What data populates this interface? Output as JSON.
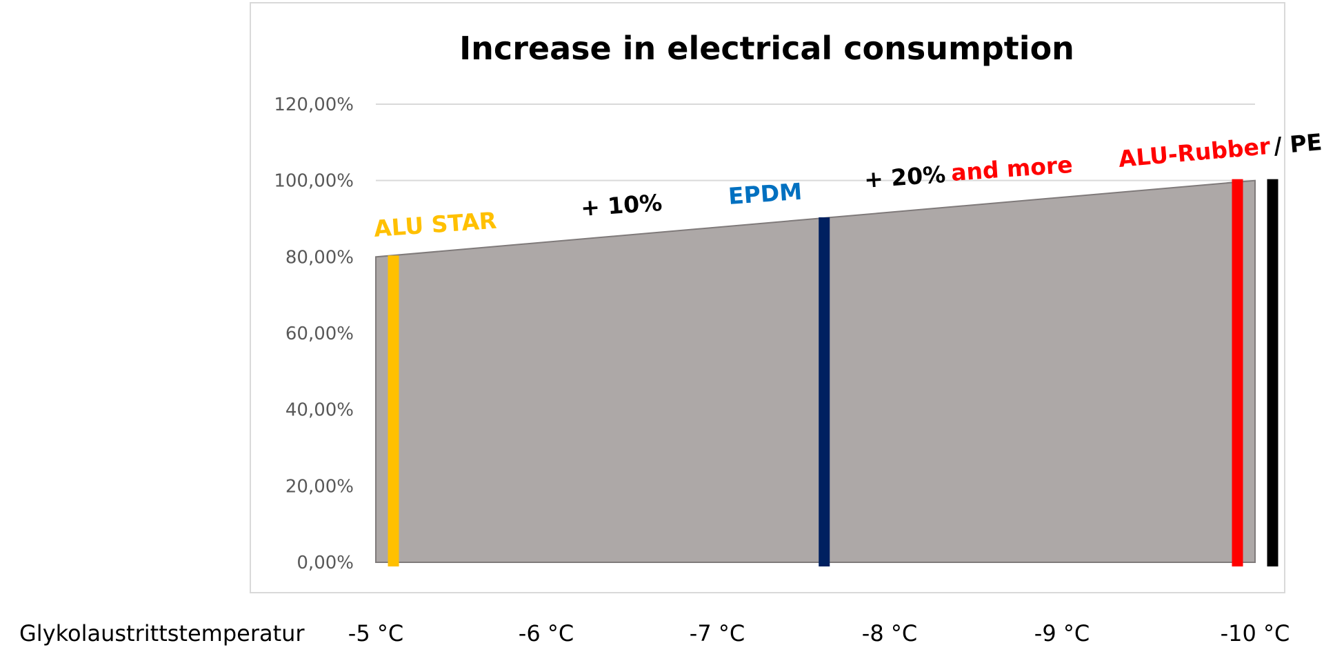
{
  "chart_data": {
    "type": "area",
    "title": "Increase in electrical consumption",
    "xlabel": "Glykolaustrittstemperatur",
    "x_ticks": [
      "-5 °C",
      "-6 °C",
      "-7 °C",
      "-8 °C",
      "-9 °C",
      "-10 °C"
    ],
    "y_ticks": [
      "0,00%",
      "20,00%",
      "40,00%",
      "60,00%",
      "80,00%",
      "100,00%",
      "120,00%"
    ],
    "ylim": [
      0,
      120
    ],
    "grid": true,
    "area": {
      "x": [
        -5,
        -10
      ],
      "y": [
        80,
        100
      ],
      "color": "#ada8a7",
      "edge": "#7f7a7a"
    },
    "markers": [
      {
        "label": "ALU STAR",
        "x": -5.1,
        "y": 80,
        "color": "#ffc000"
      },
      {
        "label": "EPDM",
        "x": -7.55,
        "y": 90,
        "color": "#002060"
      },
      {
        "label": "ALU-Rubber",
        "x": -9.9,
        "y": 100,
        "color": "#ff0000"
      },
      {
        "label": "PE",
        "x": -10.1,
        "y": 100,
        "color": "#000000"
      }
    ],
    "annotations": [
      {
        "text": "ALU STAR",
        "color": "#ffc000"
      },
      {
        "text": "+ 10%",
        "color": "#000000"
      },
      {
        "text": "EPDM",
        "color": "#0070c0"
      },
      {
        "text": "+ 20%",
        "color": "#000000"
      },
      {
        "text": "and more",
        "color": "#ff0000"
      },
      {
        "text": "ALU-Rubber",
        "color": "#ff0000"
      },
      {
        "text": "/ PE",
        "color": "#000000"
      }
    ]
  }
}
